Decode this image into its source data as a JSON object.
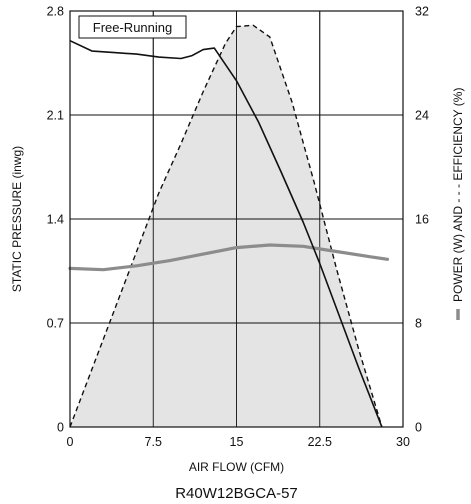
{
  "chart_data": {
    "type": "line",
    "title": "R40W12BGCA-57",
    "legend_box": "Free-Running",
    "xlabel": "AIR FLOW (CFM)",
    "ylabel_left": "STATIC PRESSURE (inwg)",
    "ylabel_right": "POWER (W)  AND  - - - EFFICIENCY (%)",
    "xlim": [
      0,
      30
    ],
    "ylim_left": [
      0,
      2.8
    ],
    "ylim_right": [
      0,
      32
    ],
    "x_ticks": [
      "0",
      "7.5",
      "15",
      "22.5",
      "30"
    ],
    "y_left_ticks": [
      "0",
      "0.7",
      "1.4",
      "2.1",
      "2.8"
    ],
    "y_right_ticks": [
      "0",
      "8",
      "16",
      "24",
      "32"
    ],
    "grid": true,
    "series": [
      {
        "key": "pressure",
        "style": "solid",
        "color": "#111111",
        "axis": "left",
        "x": [
          0,
          2,
          4,
          6,
          8,
          10,
          11,
          12,
          13,
          15,
          17,
          19,
          21,
          22.5,
          24,
          26,
          28.1
        ],
        "y": [
          2.6,
          2.53,
          2.52,
          2.51,
          2.49,
          2.48,
          2.5,
          2.54,
          2.55,
          2.33,
          2.05,
          1.72,
          1.38,
          1.1,
          0.8,
          0.4,
          0
        ]
      },
      {
        "key": "power",
        "style": "solid-thick",
        "color": "#8c8c8c",
        "axis": "right",
        "x": [
          0,
          3,
          6,
          9,
          12,
          15,
          18,
          21,
          24,
          27,
          28.6
        ],
        "y": [
          12.2,
          12.1,
          12.4,
          12.8,
          13.3,
          13.8,
          14.0,
          13.9,
          13.5,
          13.1,
          12.9
        ]
      },
      {
        "key": "efficiency",
        "style": "dashed",
        "color": "#111111",
        "axis": "right",
        "fill": "#e4e4e4",
        "x": [
          0,
          2,
          4,
          6,
          8,
          10,
          12,
          14,
          15,
          16.5,
          18,
          20,
          22,
          24,
          26,
          28.1
        ],
        "y": [
          0,
          4.5,
          9.0,
          13.5,
          18.0,
          21.8,
          25.8,
          29.5,
          30.8,
          30.9,
          30.0,
          25.0,
          18.8,
          12.2,
          6.0,
          0
        ]
      }
    ]
  }
}
